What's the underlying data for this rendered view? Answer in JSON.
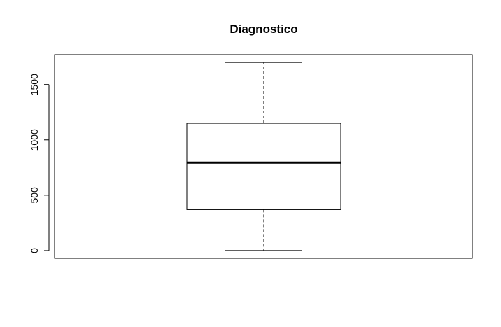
{
  "chart_data": {
    "type": "box",
    "title": "Diagnostico",
    "xlabel": "",
    "ylabel": "",
    "ylim": [
      -70,
      1770
    ],
    "y_ticks": [
      0,
      500,
      1000,
      1500
    ],
    "y_tick_labels": [
      "0",
      "500",
      "1000",
      "1500"
    ],
    "box": {
      "min": 0,
      "q1": 370,
      "median": 795,
      "q3": 1150,
      "max": 1700
    }
  }
}
